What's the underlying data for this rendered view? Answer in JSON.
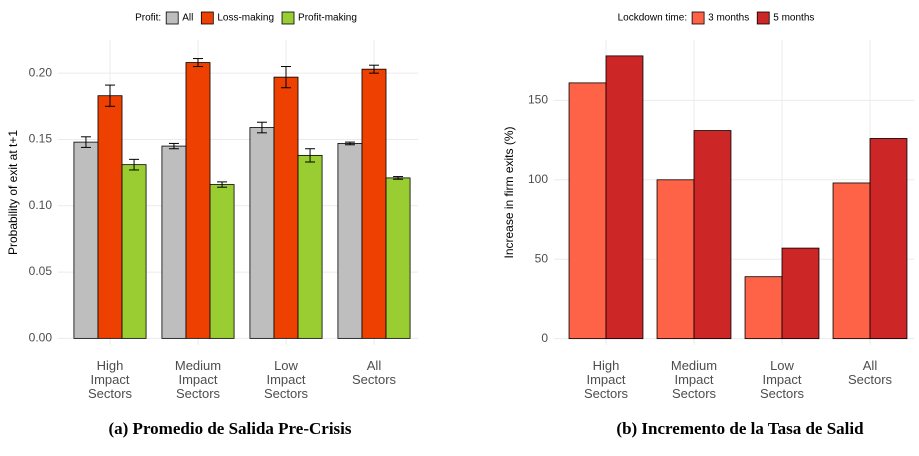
{
  "chart_data": [
    {
      "type": "bar",
      "legend_title": "Profit:",
      "ylabel": "Probability of exit at t+1",
      "caption": "(a) Promedio de Salida Pre-Crisis",
      "categories": [
        "High Impact Sectors",
        "Medium Impact Sectors",
        "Low Impact Sectors",
        "All Sectors"
      ],
      "series": [
        {
          "name": "All",
          "color": "#bebebe",
          "values": [
            0.148,
            0.145,
            0.159,
            0.147
          ],
          "errors": [
            0.004,
            0.002,
            0.004,
            0.001
          ]
        },
        {
          "name": "Loss-making",
          "color": "#ee4000",
          "values": [
            0.183,
            0.208,
            0.197,
            0.203
          ],
          "errors": [
            0.008,
            0.003,
            0.008,
            0.003
          ]
        },
        {
          "name": "Profit-making",
          "color": "#9acd32",
          "values": [
            0.131,
            0.116,
            0.138,
            0.121
          ],
          "errors": [
            0.004,
            0.002,
            0.005,
            0.001
          ]
        }
      ],
      "ylim": [
        -0.005,
        0.225
      ],
      "yticks": [
        {
          "value": 0,
          "label": "0.00"
        },
        {
          "value": 0.05,
          "label": "0.05"
        },
        {
          "value": 0.1,
          "label": "0.10"
        },
        {
          "value": 0.15,
          "label": "0.15"
        },
        {
          "value": 0.2,
          "label": "0.20"
        }
      ],
      "grid": true
    },
    {
      "type": "bar",
      "legend_title": "Lockdown time:",
      "ylabel": "Increase in firm exits (%)",
      "caption": "(b) Incremento de la Tasa de Salid",
      "categories": [
        "High Impact Sectors",
        "Medium Impact Sectors",
        "Low Impact Sectors",
        "All Sectors"
      ],
      "series": [
        {
          "name": "3 months",
          "color": "#ff6347",
          "values": [
            161,
            100,
            39,
            98
          ]
        },
        {
          "name": "5 months",
          "color": "#cd2626",
          "values": [
            178,
            131,
            57,
            126
          ]
        }
      ],
      "ylim": [
        -4,
        188
      ],
      "yticks": [
        0,
        50,
        100,
        150
      ],
      "grid": true
    }
  ]
}
